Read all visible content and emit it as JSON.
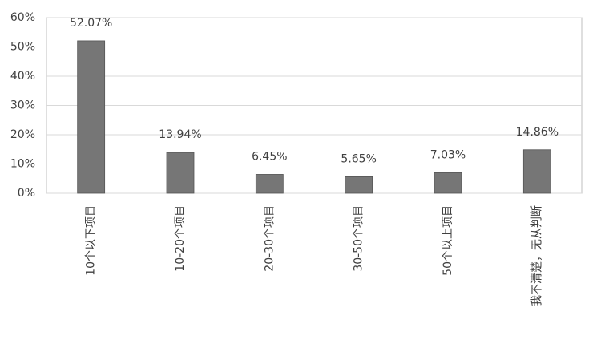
{
  "chart_data": {
    "type": "bar",
    "categories": [
      "10个以下项目",
      "10-20个项目",
      "20-30个项目",
      "30-50个项目",
      "50个以上项目",
      "我不清楚，无从判断"
    ],
    "values": [
      52.07,
      13.94,
      6.45,
      5.65,
      7.03,
      14.86
    ],
    "value_labels": [
      "52.07%",
      "13.94%",
      "6.45%",
      "5.65%",
      "7.03%",
      "14.86%"
    ],
    "color": "#767676",
    "ylim": [
      0,
      60
    ],
    "yticks": [
      {
        "value": 0,
        "label": "0%"
      },
      {
        "value": 10,
        "label": "10%"
      },
      {
        "value": 20,
        "label": "20%"
      },
      {
        "value": 30,
        "label": "30%"
      },
      {
        "value": 40,
        "label": "40%"
      },
      {
        "value": 50,
        "label": "50%"
      },
      {
        "value": 60,
        "label": "60%"
      }
    ],
    "grid": true
  }
}
